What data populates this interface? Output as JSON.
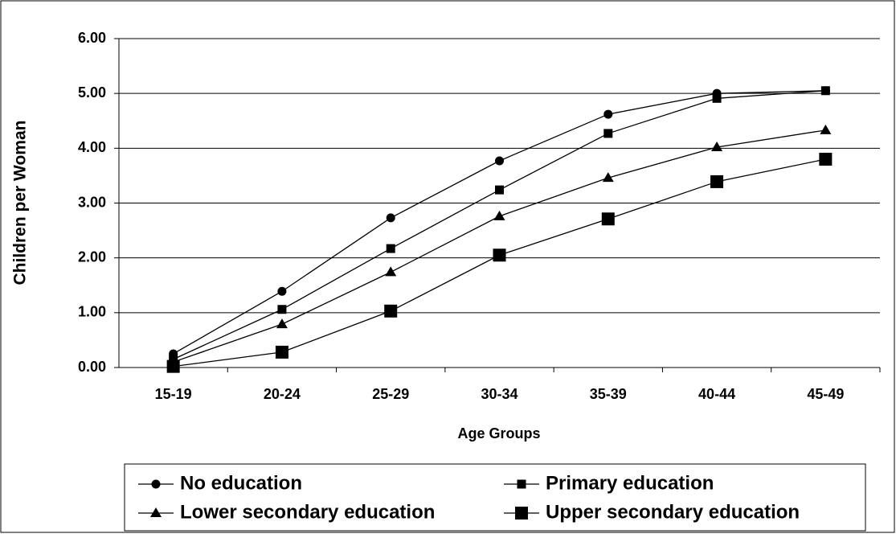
{
  "chart_data": {
    "type": "line",
    "x_label": "Age Groups",
    "y_label": "Children per Woman",
    "categories": [
      "15-19",
      "20-24",
      "25-29",
      "30-34",
      "35-39",
      "40-44",
      "45-49"
    ],
    "ylim": [
      0,
      6
    ],
    "yticks": [
      {
        "value": 0,
        "label": "0.00"
      },
      {
        "value": 1,
        "label": "1.00"
      },
      {
        "value": 2,
        "label": "2.00"
      },
      {
        "value": 3,
        "label": "3.00"
      },
      {
        "value": 4,
        "label": "4.00"
      },
      {
        "value": 5,
        "label": "5.00"
      },
      {
        "value": 6,
        "label": "6.00"
      }
    ],
    "grid": true,
    "legend": "bottom",
    "series": [
      {
        "name": "No education",
        "color": "#000000",
        "marker": "circle",
        "values": [
          0.25,
          1.39,
          2.73,
          3.77,
          4.62,
          5.0,
          5.05
        ]
      },
      {
        "name": "Primary education",
        "color": "#000000",
        "marker": "square",
        "values": [
          0.15,
          1.06,
          2.17,
          3.24,
          4.27,
          4.91,
          5.05
        ]
      },
      {
        "name": "Lower secondary education",
        "color": "#000000",
        "marker": "triangle",
        "values": [
          0.1,
          0.79,
          1.74,
          2.76,
          3.46,
          4.02,
          4.33
        ]
      },
      {
        "name": "Upper secondary education",
        "color": "#000000",
        "marker": "big-square",
        "values": [
          0.02,
          0.28,
          1.03,
          2.05,
          2.71,
          3.39,
          3.8
        ]
      }
    ]
  }
}
